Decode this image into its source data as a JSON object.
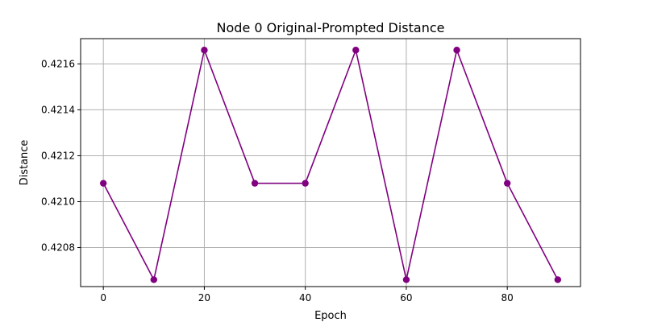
{
  "chart_data": {
    "type": "line",
    "title": "Node 0 Original-Prompted Distance",
    "xlabel": "Epoch",
    "ylabel": "Distance",
    "x": [
      0,
      10,
      20,
      30,
      40,
      50,
      60,
      70,
      80,
      90
    ],
    "series": [
      {
        "values": [
          0.42108,
          0.42066,
          0.42166,
          0.42108,
          0.42108,
          0.42166,
          0.42066,
          0.42166,
          0.42108,
          0.42066
        ],
        "color": "#800080",
        "marker": "circle"
      }
    ],
    "xlim": [
      -4.5,
      94.5
    ],
    "ylim": [
      0.42063,
      0.42171
    ],
    "xticks": [
      0,
      20,
      40,
      60,
      80
    ],
    "xtick_labels": [
      "0",
      "20",
      "40",
      "60",
      "80"
    ],
    "yticks": [
      0.4208,
      0.421,
      0.4212,
      0.4214,
      0.4216
    ],
    "ytick_labels": [
      "0.4208",
      "0.4210",
      "0.4212",
      "0.4214",
      "0.4216"
    ],
    "grid": true,
    "grid_color": "#b0b0b0"
  }
}
